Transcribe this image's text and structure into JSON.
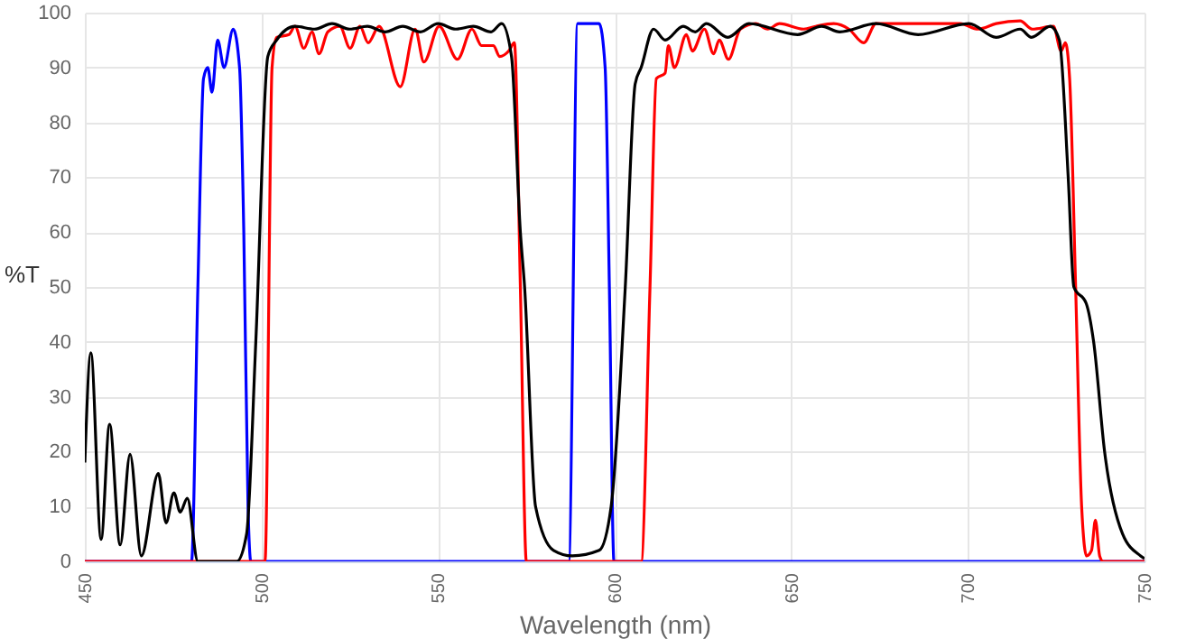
{
  "chart_data": {
    "type": "line",
    "xlabel": "Wavelength (nm)",
    "ylabel": "%T",
    "xlim": [
      450,
      750
    ],
    "ylim": [
      0,
      100
    ],
    "xticks": [
      450,
      500,
      550,
      600,
      650,
      700,
      750
    ],
    "yticks": [
      0,
      10,
      20,
      30,
      40,
      50,
      60,
      70,
      80,
      90,
      100
    ],
    "grid": true,
    "marker": "none",
    "line_style": "solid",
    "series": [
      {
        "color": "#0000ff",
        "x": [
          450,
          480.2,
          482,
          483.6,
          484.8,
          486,
          487.6,
          489.4,
          492,
          493.8,
          495,
          496.2,
          497,
          587,
          589.5,
          595.6,
          597.3,
          598.5,
          599.8,
          750
        ],
        "values": [
          0,
          0,
          50,
          88,
          90,
          85.5,
          95,
          90,
          97,
          90,
          60,
          10,
          0,
          0,
          98,
          98,
          90,
          50,
          0,
          0
        ]
      },
      {
        "color": "#ff0000",
        "x": [
          450,
          501,
          503,
          504.3,
          507.8,
          509.5,
          512,
          514.3,
          516.3,
          518.8,
          522.2,
          525.1,
          527.9,
          530.2,
          533.3,
          539.3,
          543.5,
          546,
          550.3,
          555.5,
          559.6,
          562.3,
          565.7,
          567.4,
          570,
          571.6,
          573.3,
          575,
          607.5,
          610,
          611.8,
          614.3,
          615.2,
          616.9,
          620.3,
          622,
          625.4,
          628,
          629.6,
          632.2,
          635.6,
          639.9,
          643.3,
          646.7,
          653.5,
          656.9,
          662,
          666.3,
          670.5,
          674,
          682.5,
          691,
          697.8,
          702.9,
          708,
          714.8,
          718.2,
          724.2,
          726.4,
          727.6,
          728.8,
          730.5,
          732.2,
          733.6,
          735,
          736.1,
          737.3,
          738.3,
          750
        ],
        "values": [
          0,
          0,
          90,
          95.5,
          96,
          97.5,
          93.5,
          96.5,
          92.5,
          96.5,
          97.5,
          93.5,
          97.5,
          94.5,
          97.5,
          86.5,
          97,
          91,
          97.5,
          91.5,
          97,
          94,
          94,
          92,
          93,
          94.5,
          50,
          0,
          0,
          50,
          88,
          89,
          94,
          90,
          96,
          93,
          97,
          92.5,
          95,
          91.5,
          97,
          98,
          97,
          98,
          97,
          97.5,
          98,
          97,
          94.5,
          98,
          98,
          98,
          98,
          97,
          98,
          98.5,
          97,
          97.5,
          93,
          94.5,
          88,
          50,
          10,
          1,
          2,
          7.5,
          1,
          0,
          0
        ]
      },
      {
        "color": "#000000",
        "x": [
          450,
          451.7,
          454.6,
          457,
          460,
          462.8,
          466,
          470.8,
          473,
          475.2,
          477,
          479,
          482,
          493,
          495.8,
          498.4,
          501.8,
          504.3,
          509.5,
          515,
          520,
          525,
          530,
          535,
          540,
          545,
          550,
          555,
          560,
          565,
          568,
          570.8,
          573.3,
          574.5,
          577.6,
          582.7,
          588,
          595.6,
          599,
          603,
          605.8,
          607.5,
          611,
          614.3,
          619.4,
          622.8,
          626,
          632,
          638,
          651.8,
          658.6,
          663.7,
          674,
          685.9,
          700.3,
          708,
          714.8,
          718,
          723.3,
          725.9,
          728.4,
          730,
          733.5,
          735.6,
          738.7,
          743.8,
          748.9,
          750
        ],
        "values": [
          18,
          38,
          4,
          25,
          3,
          19.5,
          1,
          16,
          7,
          12.5,
          9,
          11.5,
          0,
          0,
          5,
          40,
          92,
          95,
          97.5,
          97,
          98,
          97,
          97.5,
          96.5,
          97.5,
          96.5,
          98,
          97,
          97.5,
          96.5,
          98,
          92,
          60,
          50,
          10,
          2,
          1,
          2,
          10,
          50,
          87,
          90,
          97,
          95,
          97.5,
          96.5,
          98,
          95.5,
          98,
          96,
          97.5,
          96.5,
          98,
          96,
          98,
          95.5,
          97,
          95.5,
          97.5,
          95,
          70,
          50,
          47,
          40,
          20,
          5,
          1,
          0.5
        ]
      }
    ]
  }
}
